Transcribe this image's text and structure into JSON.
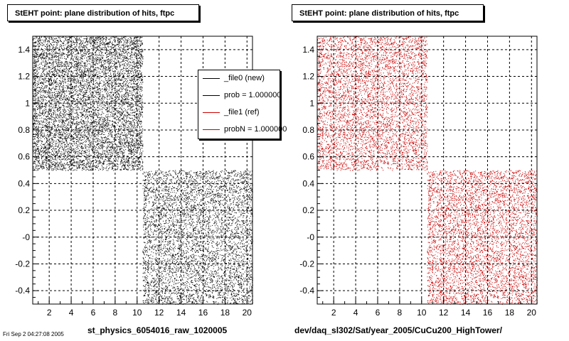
{
  "chart_data": [
    {
      "type": "scatter",
      "title": "StEHT point: plane distribution of hits, ftpc",
      "xlabel": "st_physics_6054016_raw_1020005",
      "ylabel": "",
      "xlim": [
        0.5,
        20.5
      ],
      "ylim": [
        -0.5,
        1.5
      ],
      "x_ticks": [
        "2",
        "4",
        "6",
        "8",
        "10",
        "12",
        "14",
        "16",
        "18",
        "20"
      ],
      "y_ticks": [
        "-0.4",
        "-0.2",
        "-0",
        "0.2",
        "0.4",
        "0.6",
        "0.8",
        "1",
        "1.2",
        "1.4"
      ],
      "grid": true,
      "point_color": "#000000",
      "series": [
        {
          "x_range": [
            0.5,
            10.5
          ],
          "y_range": [
            0.5,
            1.5
          ]
        },
        {
          "x_range": [
            10.5,
            20.5
          ],
          "y_range": [
            -0.5,
            0.5
          ]
        }
      ],
      "legend": {
        "placement": "top-right",
        "entries": [
          {
            "label": "_file0 (new)",
            "color": "#000000"
          },
          {
            "label": "prob = 1.000000",
            "color": "#000000"
          },
          {
            "label": "_file1 (ref)",
            "color": "#cc0000"
          },
          {
            "label": "probN = 1.000000",
            "color": "#cc0000"
          }
        ]
      }
    },
    {
      "type": "scatter",
      "title": "StEHT point: plane distribution of hits, ftpc",
      "xlabel": "dev/daq_sl302/Sat/year_2005/CuCu200_HighTower/",
      "ylabel": "",
      "xlim": [
        0.5,
        20.5
      ],
      "ylim": [
        -0.5,
        1.5
      ],
      "x_ticks": [
        "2",
        "4",
        "6",
        "8",
        "10",
        "12",
        "14",
        "16",
        "18",
        "20"
      ],
      "y_ticks": [
        "-0.4",
        "-0.2",
        "-0",
        "0.2",
        "0.4",
        "0.6",
        "0.8",
        "1",
        "1.2",
        "1.4"
      ],
      "grid": true,
      "point_color": "#cc0000",
      "series": [
        {
          "x_range": [
            0.5,
            10.5
          ],
          "y_range": [
            0.5,
            1.5
          ]
        },
        {
          "x_range": [
            10.5,
            20.5
          ],
          "y_range": [
            -0.5,
            0.5
          ]
        }
      ]
    }
  ],
  "corner_text": "Fri Sep 2 04:27:08 2005"
}
